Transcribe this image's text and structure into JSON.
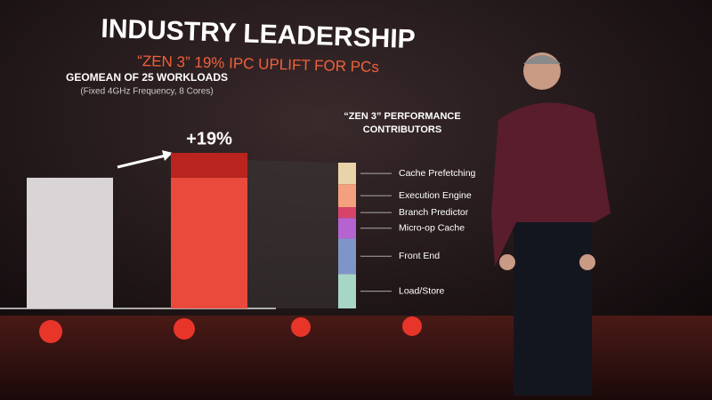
{
  "header": {
    "title": "INDUSTRY LEADERSHIP",
    "subtitle": "“ZEN 3” 19% IPC UPLIFT FOR PCs"
  },
  "chart_data": [
    {
      "type": "stacked-bar",
      "title": "GEOMEAN OF 25 WORKLOADS",
      "subtitle": "(Fixed 4GHz Frequency, 8 Cores)",
      "categories": [
        null,
        null
      ],
      "series": [
        {
          "colors": [
            "#d9d4d6",
            "#ea4a3c"
          ],
          "values": [
            100,
            100
          ]
        },
        {
          "color": "#b9241f",
          "values": [
            0,
            19
          ],
          "value_labels": [
            null,
            "+19%"
          ]
        }
      ]
    },
    {
      "type": "stacked-bar",
      "title": "“ZEN 3” PERFORMANCE CONTRIBUTORS",
      "series": [
        {
          "name": "Load/Store",
          "color": "#a8d6c6",
          "values": [
            4.5
          ]
        },
        {
          "name": "Front End",
          "color": "#7f95c9",
          "values": [
            4.6
          ]
        },
        {
          "name": "Micro-op Cache",
          "color": "#b463d0",
          "values": [
            2.7
          ]
        },
        {
          "name": "Branch Predictor",
          "color": "#d8436a",
          "values": [
            1.4
          ]
        },
        {
          "name": "Execution Engine",
          "color": "#f4a07e",
          "values": [
            3.0
          ]
        },
        {
          "name": "Cache Prefetching",
          "color": "#e9d3a8",
          "values": [
            2.8
          ]
        }
      ]
    }
  ]
}
